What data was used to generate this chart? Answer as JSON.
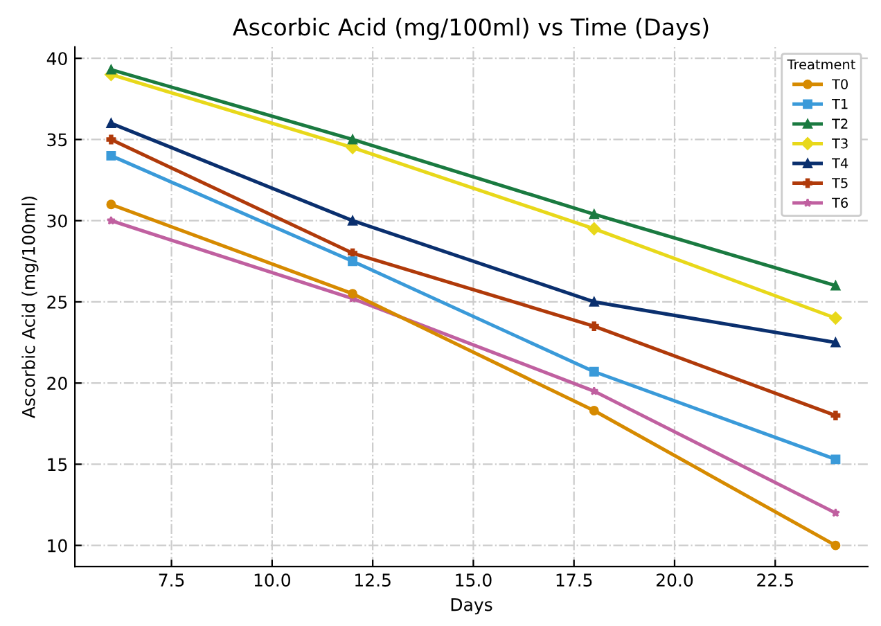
{
  "chart_data": {
    "type": "line",
    "title": "Ascorbic Acid (mg/100ml) vs Time (Days)",
    "xlabel": "Days",
    "ylabel": "Ascorbic Acid (mg/100ml)",
    "legend_title": "Treatment",
    "legend": "top right",
    "grid": true,
    "line_style": "solid",
    "x": [
      6,
      12,
      18,
      24
    ],
    "xlim": [
      5.1,
      24.8
    ],
    "ylim": [
      8.7,
      40.7
    ],
    "xticks": [
      {
        "value": 7.5,
        "label": "7.5"
      },
      {
        "value": 10,
        "label": "10.0"
      },
      {
        "value": 12.5,
        "label": "12.5"
      },
      {
        "value": 15,
        "label": "15.0"
      },
      {
        "value": 17.5,
        "label": "17.5"
      },
      {
        "value": 20,
        "label": "20.0"
      },
      {
        "value": 22.5,
        "label": "22.5"
      }
    ],
    "yticks": [
      10,
      15,
      20,
      25,
      30,
      35,
      40
    ],
    "series": [
      {
        "name": "T0",
        "color": "#d68a00",
        "marker": "circle",
        "values": [
          31,
          25.5,
          18.3,
          10
        ]
      },
      {
        "name": "T1",
        "color": "#3a9ad9",
        "marker": "square",
        "values": [
          34,
          27.5,
          20.7,
          15.3
        ]
      },
      {
        "name": "T2",
        "color": "#1a7a40",
        "marker": "triangle",
        "values": [
          39.3,
          35,
          30.4,
          26
        ]
      },
      {
        "name": "T3",
        "color": "#e8d81a",
        "marker": "diamond",
        "values": [
          39,
          34.5,
          29.5,
          24
        ]
      },
      {
        "name": "T4",
        "color": "#0a2f6e",
        "marker": "triangle",
        "values": [
          36,
          30,
          25,
          22.5
        ]
      },
      {
        "name": "T5",
        "color": "#b03a0a",
        "marker": "cross",
        "values": [
          35,
          28,
          23.5,
          18
        ]
      },
      {
        "name": "T6",
        "color": "#c060a0",
        "marker": "star",
        "values": [
          30,
          25.2,
          19.5,
          12
        ]
      }
    ]
  }
}
